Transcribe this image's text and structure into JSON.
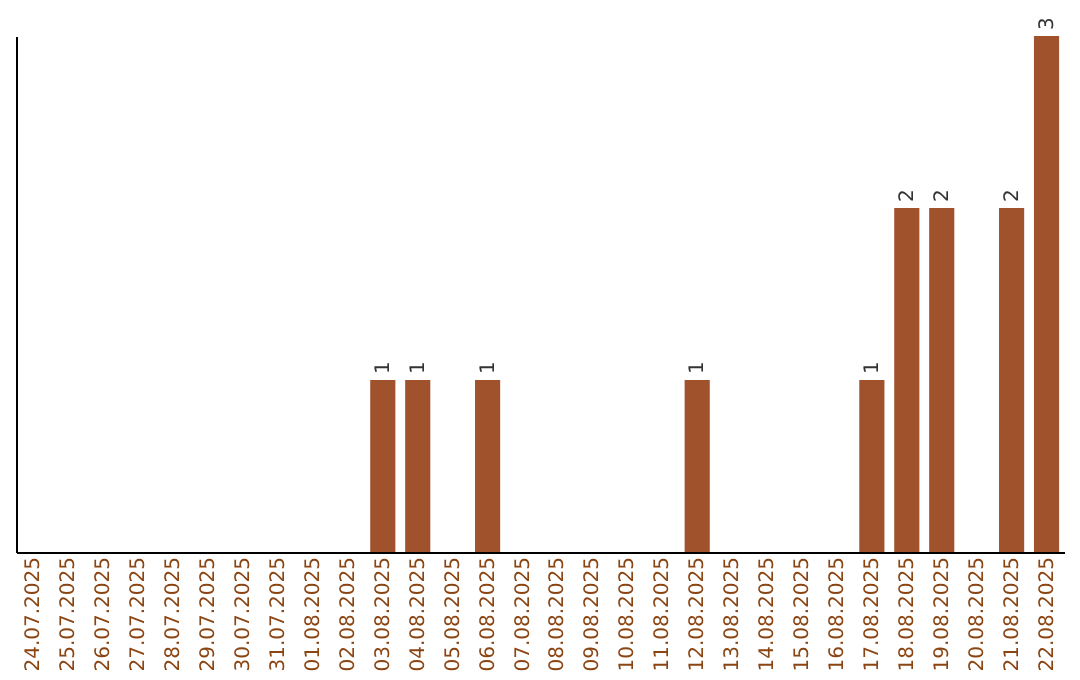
{
  "chart_data": {
    "type": "bar",
    "categories": [
      "24.07.2025",
      "25.07.2025",
      "26.07.2025",
      "27.07.2025",
      "28.07.2025",
      "29.07.2025",
      "30.07.2025",
      "31.07.2025",
      "01.08.2025",
      "02.08.2025",
      "03.08.2025",
      "04.08.2025",
      "05.08.2025",
      "06.08.2025",
      "07.08.2025",
      "08.08.2025",
      "09.08.2025",
      "10.08.2025",
      "11.08.2025",
      "12.08.2025",
      "13.08.2025",
      "14.08.2025",
      "15.08.2025",
      "16.08.2025",
      "17.08.2025",
      "18.08.2025",
      "19.08.2025",
      "20.08.2025",
      "21.08.2025",
      "22.08.2025"
    ],
    "values": [
      0,
      0,
      0,
      0,
      0,
      0,
      0,
      0,
      0,
      0,
      1,
      1,
      0,
      1,
      0,
      0,
      0,
      0,
      0,
      1,
      0,
      0,
      0,
      0,
      1,
      2,
      2,
      0,
      2,
      3
    ],
    "value_labels": [
      null,
      null,
      null,
      null,
      null,
      null,
      null,
      null,
      null,
      null,
      "1",
      "1",
      null,
      "1",
      null,
      null,
      null,
      null,
      null,
      "1",
      null,
      null,
      null,
      null,
      "1",
      "2",
      "2",
      null,
      "2",
      "3"
    ],
    "color": "#a0522d",
    "grid": false,
    "tick_labels": "x"
  }
}
